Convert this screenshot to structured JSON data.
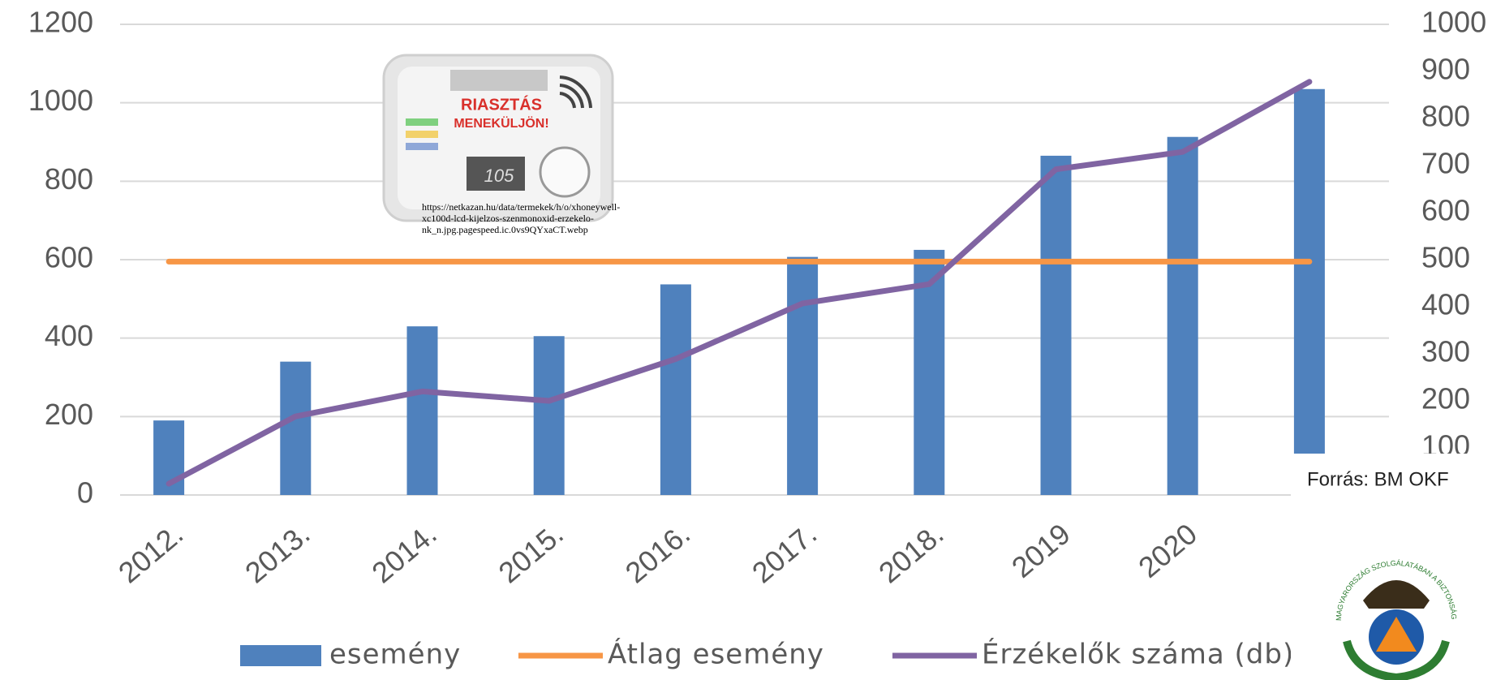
{
  "chart_data": {
    "type": "bar",
    "categories": [
      "2012.",
      "2013.",
      "2014.",
      "2015.",
      "2016.",
      "2017.",
      "2018.",
      "2019",
      "2020",
      null
    ],
    "series": [
      {
        "name": "esemény",
        "type": "bar",
        "color": "#4f81bd",
        "values": [
          190,
          340,
          430,
          405,
          537,
          607,
          625,
          865,
          913,
          1035
        ]
      },
      {
        "name": "Átlag esemény",
        "type": "line",
        "color": "#f79646",
        "values": [
          595,
          595,
          595,
          595,
          595,
          595,
          595,
          595,
          595,
          595
        ]
      },
      {
        "name": "Érzékelők száma (db)",
        "type": "line",
        "axis": "y2",
        "color": "#8064a2",
        "values": [
          24,
          167,
          220,
          200,
          289,
          407,
          448,
          692,
          729,
          878
        ]
      }
    ],
    "ylim": [
      0,
      1200
    ],
    "yticks": [
      0,
      200,
      400,
      600,
      800,
      1000,
      1200
    ],
    "y2lim": [
      0,
      1000
    ],
    "y2ticks": [
      100,
      200,
      300,
      400,
      500,
      600,
      700,
      800,
      900,
      1000
    ],
    "grid": true,
    "legend": "bottom"
  },
  "source": "Forrás: BM OKF",
  "image_texts": [
    "RIASZTÁS",
    "MENEKÜLJÖN!",
    "105"
  ],
  "image_caption": [
    "https://netkazan.hu/data/termekek/h/o/xhoneywell-",
    "xc100d-lcd-kijelzos-szenmonoxid-erzekelo-",
    "nk_n.jpg.pagespeed.ic.0vs9QYxaCT.webp"
  ],
  "logo_text": "MAGYARORSZÁG SZOLGÁLATÁBAN A BIZTONSÁGÉRT"
}
